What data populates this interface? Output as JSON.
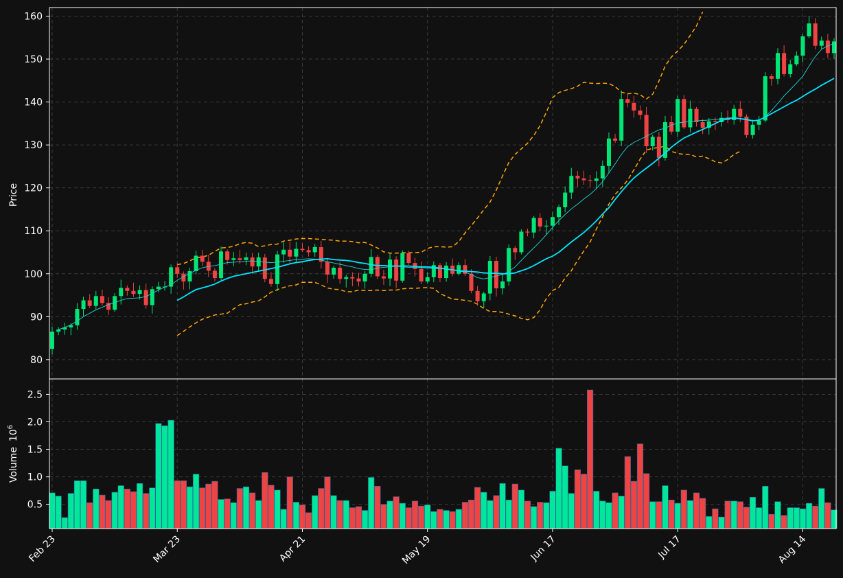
{
  "colors": {
    "background": "#111111",
    "up": "#00e676",
    "down": "#ef4444",
    "sma_short": "#22d3d3",
    "sma_long": "#00e5ff",
    "bollinger": "#ffa500",
    "volume_up": "#00e69a",
    "text": "#ffffff",
    "grid": "#3a3a3a"
  },
  "chart_data": [
    {
      "type": "candlestick",
      "panel": "price",
      "ylabel": "Price",
      "ylim": [
        75.5,
        162
      ],
      "yticks": [
        80,
        90,
        100,
        110,
        120,
        130,
        140,
        150,
        160
      ],
      "x_tick_labels": [
        "Feb 23",
        "Mar 23",
        "Apr 21",
        "May 19",
        "Jun 17",
        "Jul 17",
        "Aug 14"
      ],
      "x_tick_index": [
        0,
        20,
        40,
        60,
        80,
        100,
        120
      ],
      "grid": true,
      "close": [
        86.5,
        87,
        87.5,
        88,
        91.8,
        93.8,
        92.5,
        94.8,
        93.2,
        91.6,
        94.8,
        96.7,
        96,
        95.3,
        96.2,
        92.7,
        96.4,
        97,
        97,
        101.5,
        100,
        98.2,
        100.6,
        104.2,
        102.8,
        100.7,
        99,
        105.2,
        103.2,
        103.6,
        103.2,
        103.8,
        101.7,
        103.8,
        98.8,
        97.6,
        104.5,
        105.6,
        104,
        105.8,
        105.5,
        105,
        106.2,
        102.8,
        99.8,
        101.4,
        98.8,
        99.2,
        98.9,
        98.2,
        100,
        103.9,
        99.4,
        98.9,
        103.3,
        98.4,
        104.8,
        102.5,
        101.1,
        98.2,
        99.2,
        102,
        99,
        101.9,
        100,
        102,
        100,
        96,
        93.6,
        95.4,
        103,
        96.6,
        98.2,
        106,
        105,
        109.8,
        109.6,
        113,
        111,
        111.2,
        113.2,
        115.5,
        118.9,
        122.8,
        122.2,
        121.8,
        121.6,
        122.2,
        125.1,
        131.5,
        131,
        140.7,
        139.8,
        138,
        137,
        129.7,
        131.9,
        127,
        135.3,
        133.1,
        140.7,
        134.1,
        138.4,
        135.3,
        134,
        135.5,
        135.3,
        136.3,
        135.8,
        138.4,
        136.6,
        132.3,
        134.7,
        135.7,
        146,
        145.4,
        151.4,
        146.5,
        148.8,
        150.8,
        155.3,
        158.3,
        153.1,
        154.3,
        151.4,
        154.1
      ],
      "sma_short_index_range": [
        1,
        125
      ],
      "sma_short": [
        87,
        87.5,
        88.1,
        89,
        90,
        90.8,
        91.6,
        92.2,
        92.8,
        93.3,
        93.8,
        94.2,
        94.3,
        94.4,
        94.7,
        95.4,
        96.2,
        96.9,
        97.4,
        98.5,
        99.3,
        100.1,
        100.8,
        101.4,
        101.7,
        101.9,
        102.2,
        102.6,
        102.7,
        102.8,
        102.9,
        103,
        102.8,
        102.7,
        102.6,
        102.7,
        102.9,
        103.1,
        103.3,
        103.4,
        103.5,
        103.4,
        103.2,
        102.8,
        102.5,
        102.2,
        101.9,
        101.6,
        101.2,
        101,
        100.9,
        101.3,
        101.5,
        101.6,
        101.8,
        101.6,
        101.5,
        101.5,
        101.4,
        101.3,
        101.2,
        101.2,
        101.1,
        100.9,
        100.6,
        100.4,
        99.8,
        99.1,
        98.8,
        99.1,
        99.5,
        99.8,
        100.5,
        101.6,
        103.1,
        104.6,
        106,
        107.5,
        109.1,
        110.8,
        112.4,
        113.8,
        115.1,
        116.2,
        117.4,
        118.5,
        119.8,
        121.5,
        123.5,
        125.6,
        127.8,
        129.6,
        130.6,
        131.3,
        132,
        132.8,
        133.5,
        133.9,
        134.6,
        135.1,
        135.3,
        135.5,
        135.6,
        135.7,
        135.8,
        135.9,
        136.1,
        136.3,
        136.3,
        136.2,
        136,
        135.7,
        135.7,
        136.6,
        138,
        139.7,
        141.4,
        142.9,
        144.4,
        146,
        148.4,
        150.6,
        152.3,
        153.1,
        153.6
      ],
      "sma_long_index_range": [
        20,
        125
      ],
      "sma_long": [
        93.8,
        94.6,
        95.5,
        96.3,
        96.7,
        97.1,
        97.6,
        98.3,
        98.9,
        99.4,
        99.7,
        100,
        100.3,
        100.6,
        100.9,
        101.2,
        101.5,
        101.9,
        102.3,
        102.6,
        102.8,
        103.1,
        103.3,
        103.4,
        103.5,
        103.3,
        103.2,
        103.1,
        102.9,
        102.6,
        102.4,
        102.1,
        101.9,
        101.9,
        101.8,
        101.8,
        101.8,
        101.8,
        101.7,
        101.6,
        101.6,
        101.5,
        101.3,
        101.1,
        100.9,
        100.7,
        100.6,
        100.5,
        100.4,
        100.2,
        100.1,
        100.1,
        100,
        100,
        100.2,
        100.7,
        101.2,
        101.9,
        102.7,
        103.5,
        104.1,
        105,
        106.2,
        107.4,
        108.5,
        109.6,
        110.9,
        112.3,
        113.9,
        115.4,
        117.3,
        119.1,
        120.8,
        122.3,
        123.5,
        124.6,
        125.7,
        126.9,
        128.1,
        129.5,
        130.6,
        131.6,
        132.3,
        133,
        133.6,
        134.3,
        135,
        135.7,
        136.1,
        136.3,
        136.1,
        135.9,
        135.6,
        135.8,
        136.5,
        137.3,
        138.1,
        138.9,
        139.7,
        140.4,
        141.3,
        142.2,
        143,
        143.9,
        144.7,
        145.5
      ],
      "bollinger_upper": [
        102.1,
        102.4,
        103,
        103.7,
        103.9,
        104.3,
        105.2,
        106,
        106.1,
        106.4,
        107,
        107.3,
        107.1,
        106.3,
        106.5,
        106.8,
        106.9,
        107.6,
        107.8,
        108.1,
        108.2,
        108.2,
        108.1,
        108,
        107.9,
        107.8,
        107.6,
        107.6,
        107.5,
        107.2,
        107.3,
        106.7,
        106,
        105.1,
        104.8,
        104.8,
        104.9,
        104.9,
        104.9,
        105,
        105.9,
        106.3,
        106.3,
        106.2,
        106.3,
        107.5,
        109.5,
        111.2,
        113,
        114.9,
        116.7,
        119.5,
        122.8,
        125.9,
        127.8,
        129.1,
        130.4,
        132.2,
        134.5,
        137.6,
        141,
        142.2,
        142.7,
        143.1,
        143.7,
        144.6,
        144.4,
        144.3,
        144.4,
        144.3,
        143.6,
        142.3,
        141.9,
        142.1,
        141.7,
        140.7,
        141.8,
        144.9,
        148.4,
        150.5,
        151.9,
        153.4,
        155.5,
        157.7,
        161
      ],
      "bollinger_lower": [
        85.6,
        86.6,
        87.6,
        88.6,
        89.4,
        89.9,
        90.4,
        90.6,
        90.8,
        91.8,
        92.8,
        93,
        93.4,
        93.7,
        94.6,
        95.7,
        96.3,
        96.8,
        97.2,
        97.4,
        98,
        98,
        98,
        97.4,
        96.7,
        96.4,
        96.3,
        95.8,
        95.8,
        96.2,
        96.1,
        96.1,
        96.2,
        96.1,
        96.2,
        96.2,
        96.5,
        96.6,
        96.6,
        96.7,
        96.8,
        96.6,
        95.4,
        94.7,
        94.1,
        94,
        93.8,
        93.6,
        92.9,
        91.9,
        91.2,
        91.2,
        91,
        90.6,
        90.2,
        89.6,
        89.3,
        89.8,
        91.6,
        94.2,
        96.1,
        96.8,
        99,
        100.7,
        103.1,
        105.3,
        107.4,
        110.4,
        113.3,
        116.2,
        118.5,
        120,
        121.8,
        124.2,
        126.7,
        128.8,
        129.2,
        129.4,
        129.7,
        128.5,
        128,
        127.8,
        127.8,
        127.2,
        127.4,
        126.8,
        126.1,
        125.8,
        126.6,
        127.8,
        128.5
      ]
    },
    {
      "type": "bar",
      "panel": "volume",
      "ylabel": "Volume",
      "ylabel_exponent": "10",
      "ylabel_exponent_power": "6",
      "ylim": [
        0.06,
        2.78
      ],
      "yticks": [
        0.5,
        1.0,
        1.5,
        2.0,
        2.5
      ],
      "ytick_labels": [
        "0.5",
        "1.0",
        "1.5",
        "2.0",
        "2.5"
      ],
      "grid": true,
      "values": [
        0.71,
        0.65,
        0.26,
        0.7,
        0.93,
        0.93,
        0.53,
        0.78,
        0.67,
        0.57,
        0.72,
        0.84,
        0.78,
        0.73,
        0.88,
        0.7,
        0.8,
        1.97,
        1.93,
        2.03,
        0.93,
        0.93,
        0.82,
        1.05,
        0.8,
        0.87,
        0.92,
        0.59,
        0.6,
        0.53,
        0.79,
        0.82,
        0.71,
        0.57,
        1.08,
        0.85,
        0.76,
        0.41,
        1.0,
        0.54,
        0.49,
        0.35,
        0.66,
        0.79,
        1.0,
        0.66,
        0.57,
        0.57,
        0.44,
        0.46,
        0.39,
        0.99,
        0.83,
        0.5,
        0.56,
        0.64,
        0.52,
        0.44,
        0.56,
        0.47,
        0.49,
        0.37,
        0.41,
        0.39,
        0.37,
        0.41,
        0.54,
        0.58,
        0.81,
        0.72,
        0.57,
        0.66,
        0.88,
        0.58,
        0.87,
        0.76,
        0.56,
        0.46,
        0.54,
        0.53,
        0.74,
        1.52,
        1.2,
        0.7,
        1.13,
        1.05,
        2.58,
        0.74,
        0.56,
        0.53,
        0.71,
        0.65,
        1.37,
        0.92,
        1.6,
        1.06,
        0.55,
        0.55,
        0.84,
        0.58,
        0.52,
        0.76,
        0.57,
        0.71,
        0.61,
        0.28,
        0.42,
        0.27,
        0.56,
        0.56,
        0.55,
        0.45,
        0.63,
        0.44,
        0.83,
        0.32,
        0.55,
        0.3,
        0.44,
        0.44,
        0.42,
        0.52,
        0.47,
        0.79,
        0.53,
        0.4
      ]
    }
  ]
}
